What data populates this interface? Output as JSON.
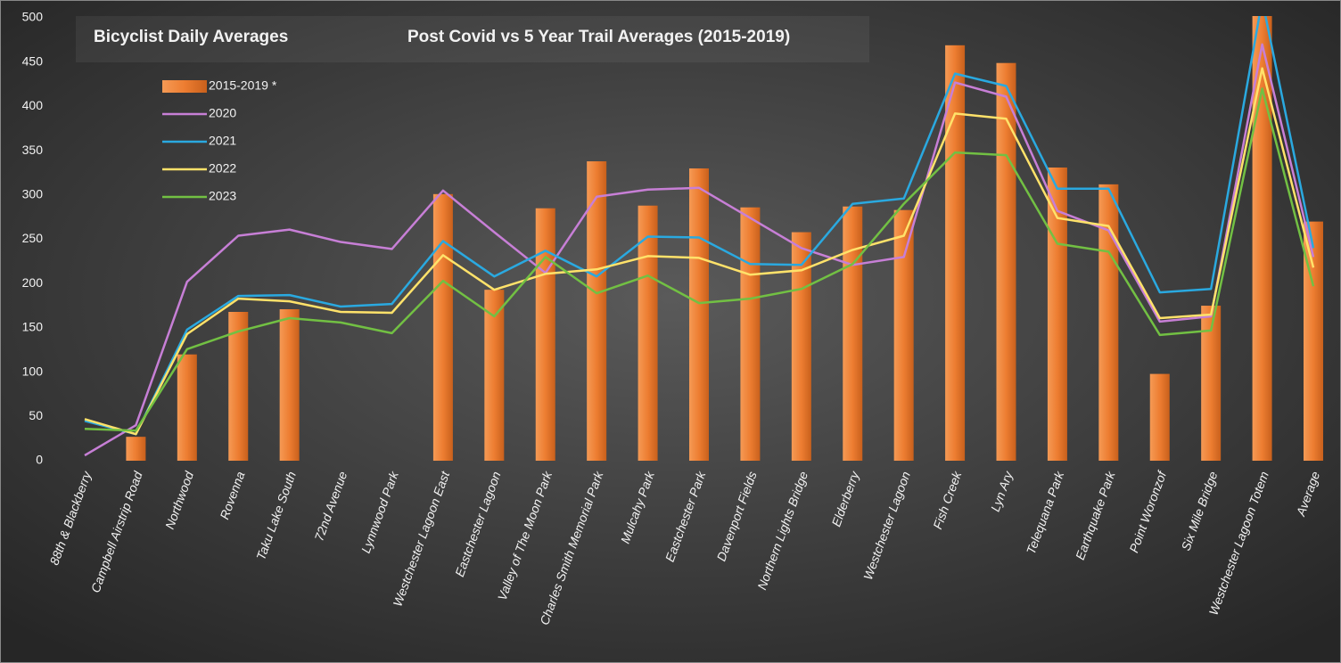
{
  "chart_data": {
    "type": "bar_line",
    "title": "Bicyclist Daily Averages",
    "subtitle": "Post Covid vs 5 Year Trail Averages (2015-2019)",
    "categories": [
      "88th & Blackberry",
      "Campbell Airstrip Road",
      "Northwood",
      "Rovenna",
      "Taku Lake South",
      "72nd Avenue",
      "Lynnwood Park",
      "Westchester Lagoon East",
      "Eastchester Lagoon",
      "Valley of The Moon Park",
      "Charles Smith Memorial Park",
      "Mulcahy Park",
      "Eastchester Park",
      "Davenport Fields",
      "Northern Lights Bridge",
      "Elderberry",
      "Westchester Lagoon",
      "Fish Creek",
      "Lyn Ary",
      "Telequana Park",
      "Earthquake Park",
      "Point Woronzof",
      "Six Mile Bridge",
      "Westchester Lagoon Totem",
      "Average"
    ],
    "series": [
      {
        "name": "2015-2019 *",
        "type": "bar",
        "color": "#ed7d31",
        "values": [
          null,
          27,
          120,
          168,
          171,
          null,
          null,
          301,
          193,
          285,
          338,
          288,
          330,
          286,
          258,
          287,
          283,
          469,
          449,
          331,
          312,
          98,
          175,
          510,
          270
        ]
      },
      {
        "name": "2020",
        "type": "line",
        "color": "#c77fd6",
        "values": [
          6,
          40,
          202,
          254,
          261,
          247,
          239,
          305,
          258,
          212,
          298,
          306,
          308,
          274,
          240,
          221,
          230,
          427,
          411,
          282,
          260,
          157,
          163,
          470,
          230
        ]
      },
      {
        "name": "2021",
        "type": "line",
        "color": "#2aa9e0",
        "values": [
          45,
          30,
          148,
          186,
          187,
          174,
          177,
          248,
          208,
          237,
          208,
          253,
          252,
          222,
          221,
          290,
          296,
          437,
          423,
          307,
          307,
          190,
          194,
          520,
          240
        ]
      },
      {
        "name": "2022",
        "type": "line",
        "color": "#ffe26a",
        "values": [
          47,
          30,
          143,
          183,
          180,
          168,
          167,
          232,
          193,
          211,
          216,
          231,
          229,
          210,
          215,
          238,
          254,
          392,
          386,
          274,
          265,
          161,
          165,
          443,
          218
        ]
      },
      {
        "name": "2023",
        "type": "line",
        "color": "#72c043",
        "values": [
          36,
          34,
          126,
          146,
          161,
          156,
          144,
          203,
          163,
          230,
          189,
          209,
          178,
          183,
          194,
          222,
          290,
          348,
          345,
          245,
          236,
          142,
          147,
          420,
          197
        ]
      }
    ],
    "ylim": [
      0,
      500
    ],
    "yticks": [
      0,
      50,
      100,
      150,
      200,
      250,
      300,
      350,
      400,
      450,
      500
    ],
    "grid": false,
    "legend": "upper left"
  }
}
